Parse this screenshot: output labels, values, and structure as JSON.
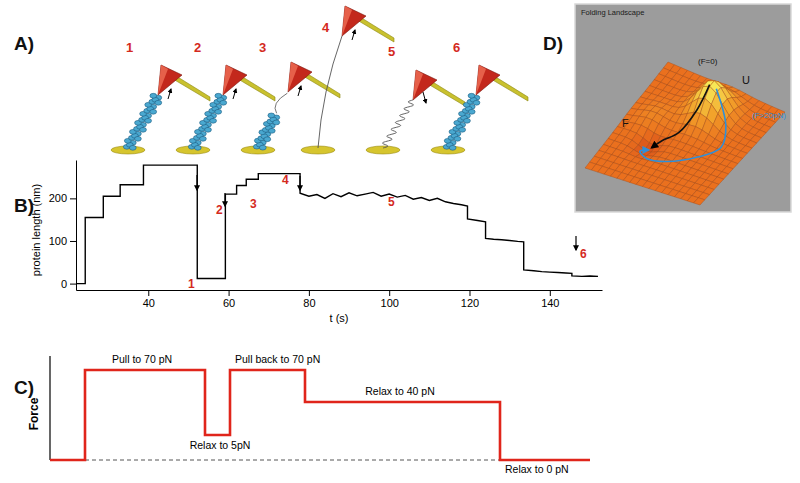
{
  "panel_labels": [
    "A)",
    "B)",
    "C)",
    "D)"
  ],
  "cartoon_steps": [
    "1",
    "2",
    "3",
    "4",
    "5",
    "6"
  ],
  "chart_data": {
    "type": "line",
    "xlabel": "t (s)",
    "ylabel": "protein length (nm)",
    "x": [
      22,
      24.3,
      24.3,
      28.8,
      28.8,
      33,
      33,
      38.8,
      38.8,
      52.2,
      52.2,
      59.2,
      59.2,
      62,
      62,
      64.4,
      64.4,
      67.4,
      67.4,
      77.8,
      77.8,
      80,
      82,
      84,
      86,
      88,
      90,
      92,
      94,
      96,
      98,
      100,
      102,
      104,
      106,
      108,
      110,
      112,
      114,
      116,
      118,
      119.5,
      119.5,
      122,
      124,
      124,
      126,
      128,
      130,
      132,
      133.5,
      133.5,
      136,
      138,
      140,
      142,
      144,
      145.5,
      145.5,
      148,
      150,
      152
    ],
    "values": [
      0,
      0,
      155,
      155,
      205,
      205,
      232,
      232,
      278,
      278,
      12,
      12,
      210,
      210,
      230,
      230,
      245,
      245,
      258,
      258,
      212,
      205,
      209,
      200,
      211,
      204,
      213,
      206,
      210,
      214,
      205,
      210,
      203,
      207,
      198,
      202,
      195,
      200,
      192,
      188,
      185,
      182,
      152,
      148,
      145,
      106,
      104,
      103,
      101,
      99,
      98,
      32,
      30,
      28,
      27,
      26,
      25,
      24,
      18,
      17,
      18,
      17
    ],
    "color": "#000000",
    "xlim": [
      22,
      153
    ],
    "ylim": [
      -15,
      290
    ],
    "xticks": [
      40,
      60,
      80,
      100,
      120,
      140
    ],
    "yticks": [
      0,
      100,
      200
    ],
    "annotations": [
      "1",
      "2",
      "3",
      "4",
      "5",
      "6"
    ]
  },
  "force_protocol": {
    "ylabel": "Force",
    "steps": [
      "Pull to 70 pN",
      "Relax to 5pN",
      "Pull back to 70 pN",
      "Relax to 40 pN",
      "Relax to 0 pN"
    ]
  },
  "landscape": {
    "title": "Folding Landscape",
    "zero_force": "(F=0)",
    "unfolded": "U",
    "folded": "F",
    "high_force": "(F>20pN)"
  }
}
